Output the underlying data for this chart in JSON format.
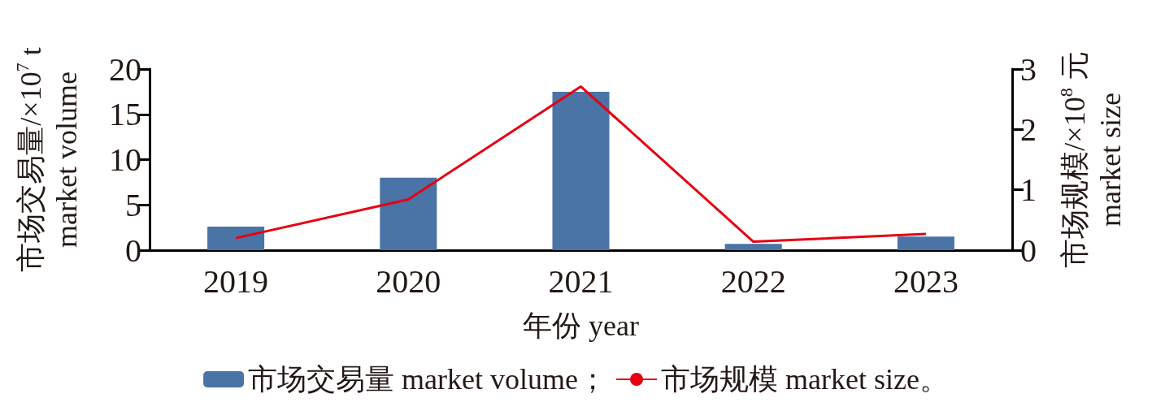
{
  "chart_data": {
    "type": "bar",
    "categories": [
      "2019",
      "2020",
      "2021",
      "2022",
      "2023"
    ],
    "xlabel": "年份 year",
    "ylabel": "市场交易量/×10$^{7}$ t\nmarket volume",
    "y2label": "市场规模/×10$^{8}$ 元\nmarket size",
    "series": [
      {
        "name": "市场交易量 market volume；",
        "color": "#4a73a6",
        "values": [
          2.6,
          8.0,
          17.5,
          0.7,
          1.5
        ]
      },
      {
        "name": "市场规模 market size。",
        "type": "line",
        "axis": "y2",
        "color": "#e60012",
        "values": [
          0.2,
          0.84,
          2.71,
          0.14,
          0.27
        ]
      }
    ],
    "ylim": [
      0,
      20
    ],
    "yticks": [
      0,
      5,
      10,
      15,
      20
    ],
    "y2lim": [
      0,
      3
    ],
    "y2ticks": [
      0,
      1,
      2,
      3
    ],
    "grid": false,
    "legend": "bottom",
    "marker": "none"
  }
}
